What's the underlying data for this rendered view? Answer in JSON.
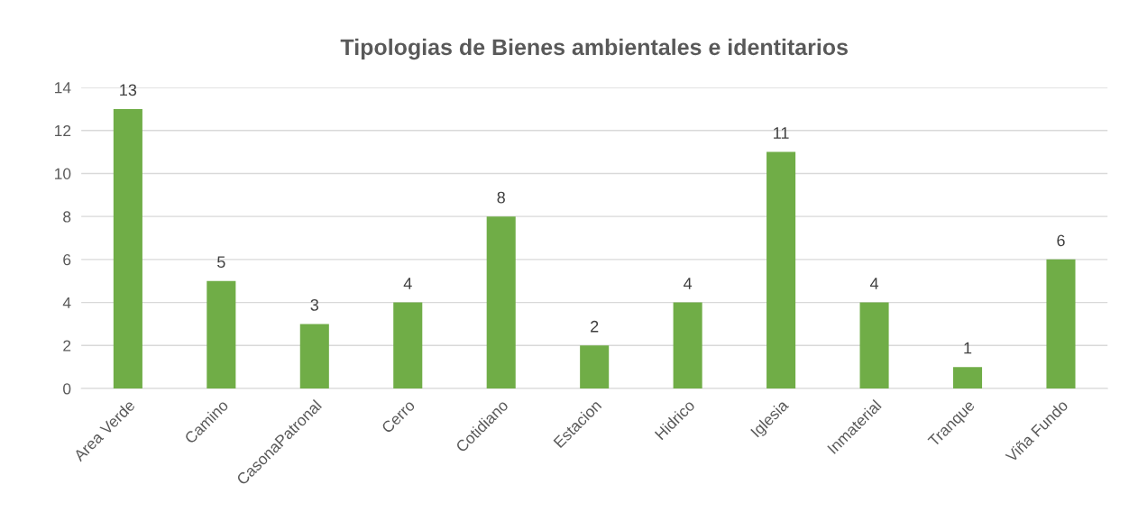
{
  "chart_data": {
    "type": "bar",
    "title": "Tipologias de Bienes ambientales e identitarios",
    "categories": [
      "Area Verde",
      "Camino",
      "CasonaPatronal",
      "Cerro",
      "Cotidiano",
      "Estacion",
      "Hidrico",
      "Iglesia",
      "Inmaterial",
      "Tranque",
      "Viña Fundo"
    ],
    "values": [
      13,
      5,
      3,
      4,
      8,
      2,
      4,
      11,
      4,
      1,
      6
    ],
    "color": "#70ad47",
    "ylim": [
      0,
      14
    ],
    "yticks": [
      0,
      2,
      4,
      6,
      8,
      10,
      12,
      14
    ],
    "grid": "y",
    "data_labels": true
  }
}
